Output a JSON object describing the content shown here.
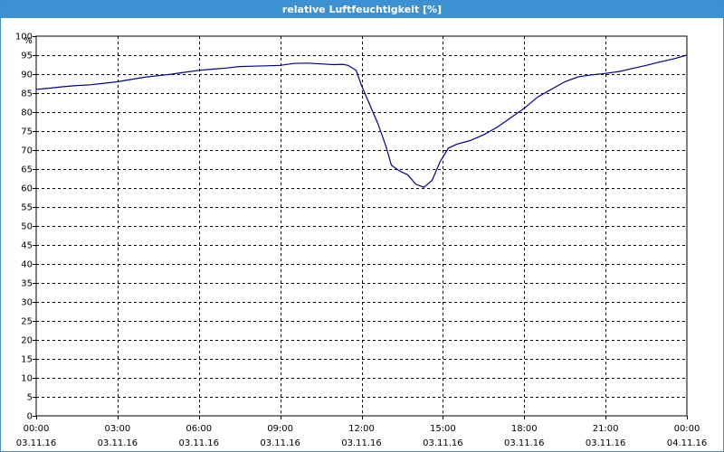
{
  "window": {
    "title": "relative Luftfeuchtigkeit [%]"
  },
  "colors": {
    "titlebar": "#3c91d2",
    "series": "#00008b",
    "grid": "#000000",
    "background": "#ffffff"
  },
  "chart_data": {
    "type": "line",
    "title": "relative Luftfeuchtigkeit [%]",
    "ylabel": "%",
    "xlabel": "",
    "ylim": [
      0,
      100
    ],
    "yticks": [
      0,
      5,
      10,
      15,
      20,
      25,
      30,
      35,
      40,
      45,
      50,
      55,
      60,
      65,
      70,
      75,
      80,
      85,
      90,
      95,
      100
    ],
    "xlim": [
      0,
      24
    ],
    "x_unit": "hours since 03.11.16 00:00",
    "xticks": [
      {
        "x": 0,
        "time": "00:00",
        "date": "03.11.16"
      },
      {
        "x": 3,
        "time": "03:00",
        "date": "03.11.16"
      },
      {
        "x": 6,
        "time": "06:00",
        "date": "03.11.16"
      },
      {
        "x": 9,
        "time": "09:00",
        "date": "03.11.16"
      },
      {
        "x": 12,
        "time": "12:00",
        "date": "03.11.16"
      },
      {
        "x": 15,
        "time": "15:00",
        "date": "03.11.16"
      },
      {
        "x": 18,
        "time": "18:00",
        "date": "03.11.16"
      },
      {
        "x": 21,
        "time": "21:00",
        "date": "03.11.16"
      },
      {
        "x": 24,
        "time": "00:00",
        "date": "04.11.16"
      }
    ],
    "grid": true,
    "legend": "none",
    "series": [
      {
        "name": "",
        "x": [
          0,
          0.5,
          1,
          1.5,
          2,
          2.5,
          3,
          3.5,
          4,
          4.5,
          5,
          5.5,
          6,
          6.5,
          7,
          7.5,
          8,
          8.5,
          9,
          9.5,
          10,
          10.5,
          11,
          11.3,
          11.5,
          11.8,
          12,
          12.3,
          12.6,
          12.9,
          13.1,
          13.4,
          13.7,
          14,
          14.3,
          14.6,
          14.9,
          15.2,
          15.5,
          16,
          16.5,
          17,
          17.5,
          18,
          18.5,
          19,
          19.5,
          20,
          20.5,
          21,
          21.5,
          22,
          22.5,
          23,
          23.5,
          24
        ],
        "y": [
          86,
          86.3,
          86.7,
          87,
          87.2,
          87.6,
          88,
          88.6,
          89.2,
          89.6,
          90,
          90.5,
          91,
          91.3,
          91.6,
          92,
          92.1,
          92.2,
          92.3,
          92.8,
          92.9,
          92.7,
          92.5,
          92.6,
          92.3,
          91,
          87,
          82,
          77,
          71,
          66,
          64.5,
          63.5,
          61,
          60.2,
          62,
          67,
          70.5,
          71.5,
          72.5,
          74,
          76,
          78.5,
          81,
          84,
          86,
          88,
          89.3,
          89.8,
          90.2,
          90.7,
          91.5,
          92.3,
          93.2,
          94,
          95
        ]
      }
    ]
  }
}
